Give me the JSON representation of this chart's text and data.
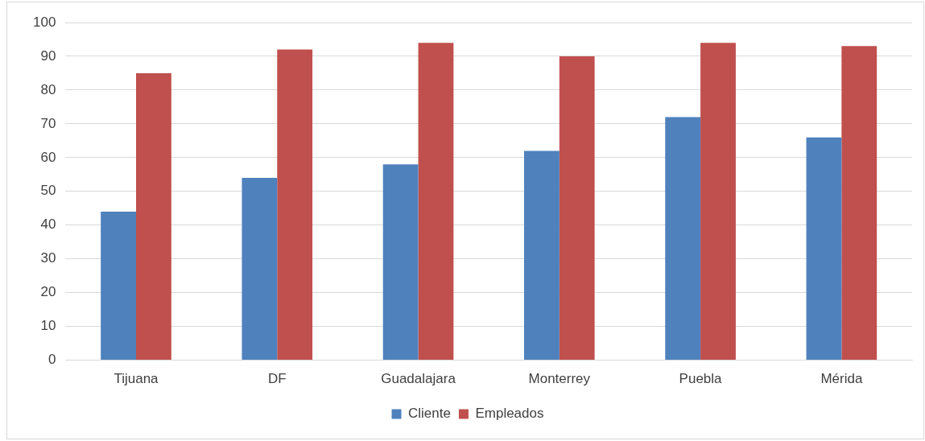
{
  "chart_data": {
    "type": "bar",
    "categories": [
      "Tijuana",
      "DF",
      "Guadalajara",
      "Monterrey",
      "Puebla",
      "Mérida"
    ],
    "series": [
      {
        "name": "Cliente",
        "color": "#4f81bd",
        "values": [
          44,
          54,
          58,
          62,
          72,
          66
        ]
      },
      {
        "name": "Empleados",
        "color": "#c0504d",
        "values": [
          85,
          92,
          94,
          90,
          94,
          93
        ]
      }
    ],
    "ylim": [
      0,
      100
    ],
    "yticks": [
      0,
      10,
      20,
      30,
      40,
      50,
      60,
      70,
      80,
      90,
      100
    ],
    "grid": "y",
    "legend": "bottom"
  }
}
